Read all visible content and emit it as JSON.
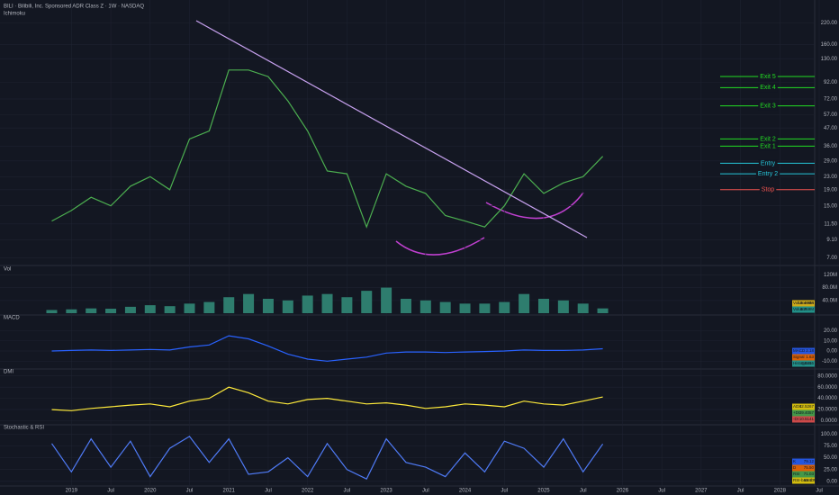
{
  "chart_data": [
    {
      "type": "line",
      "title": "BILI · Bilibili, Inc. Sponsored ADR Class Z · 1W · NASDAQ",
      "subtitle": "Ichimoku",
      "log": true,
      "grid": true,
      "xlim": [
        2018.55,
        2028.9
      ],
      "xticks": [
        2019,
        {
          "value": 2019.5,
          "label": "Jul"
        },
        2020,
        {
          "value": 2020.5,
          "label": "Jul"
        },
        2021,
        {
          "value": 2021.5,
          "label": "Jul"
        },
        2022,
        {
          "value": 2022.5,
          "label": "Jul"
        },
        2023,
        {
          "value": 2023.5,
          "label": "Jul"
        },
        2024,
        {
          "value": 2024.5,
          "label": "Jul"
        },
        2025,
        {
          "value": 2025.5,
          "label": "Jul"
        },
        2026,
        {
          "value": 2026.5,
          "label": "Jul"
        },
        2027,
        {
          "value": 2027.5,
          "label": "Jul"
        },
        2028,
        {
          "value": 2028.5,
          "label": "Jul"
        }
      ],
      "ylim": [
        6.5,
        230
      ],
      "yticks": [
        {
          "value": 7,
          "label": "7.00"
        },
        {
          "value": 9.1,
          "label": "9.10"
        },
        {
          "value": 11.5,
          "label": "11.50"
        },
        {
          "value": 15,
          "label": "15.00"
        },
        {
          "value": 19,
          "label": "19.00"
        },
        {
          "value": 23,
          "label": "23.00"
        },
        {
          "value": 29,
          "label": "29.00"
        },
        {
          "value": 36,
          "label": "36.00"
        },
        {
          "value": 47,
          "label": "47.00"
        },
        {
          "value": 57,
          "label": "57.00"
        },
        {
          "value": 72,
          "label": "72.00"
        },
        {
          "value": 92,
          "label": "92.00"
        },
        {
          "value": 130,
          "label": "130.00"
        },
        {
          "value": 160,
          "label": "160.00"
        },
        {
          "value": 220,
          "label": "220.00"
        }
      ],
      "x": [
        2018.75,
        2019,
        2019.25,
        2019.5,
        2019.75,
        2020,
        2020.25,
        2020.5,
        2020.75,
        2021,
        2021.25,
        2021.5,
        2021.75,
        2022,
        2022.25,
        2022.5,
        2022.75,
        2023,
        2023.25,
        2023.5,
        2023.75,
        2024,
        2024.25,
        2024.5,
        2024.75,
        2025,
        2025.25,
        2025.5,
        2025.75
      ],
      "series": [
        {
          "name": "BILI",
          "color": "#4caf50",
          "values": [
            12,
            14,
            17,
            15,
            20,
            23,
            19,
            40,
            45,
            110,
            110,
            100,
            70,
            45,
            25,
            24,
            11,
            24,
            20,
            18,
            13,
            12,
            11,
            15,
            24,
            18,
            21,
            23,
            31
          ]
        }
      ],
      "levels": [
        {
          "label": "Exit 5",
          "value": 100,
          "color": "#22dd22"
        },
        {
          "label": "Exit 4",
          "value": 85,
          "color": "#22dd22"
        },
        {
          "label": "Exit 3",
          "value": 65,
          "color": "#22dd22"
        },
        {
          "label": "Exit 2",
          "value": 40,
          "color": "#22dd22"
        },
        {
          "label": "Exit 1",
          "value": 36,
          "color": "#22dd22"
        },
        {
          "label": "Entry",
          "value": 28,
          "color": "#26c6da"
        },
        {
          "label": "Entry 2",
          "value": 24,
          "color": "#26c6da"
        },
        {
          "label": "Stop",
          "value": 19,
          "color": "#ef5350"
        }
      ]
    },
    {
      "type": "bar",
      "title": "Vol",
      "grid": true,
      "ylim": [
        0,
        135
      ],
      "yticks": [
        {
          "value": 40,
          "label": "40.0M"
        },
        {
          "value": 80,
          "label": "80.0M"
        },
        {
          "value": 120,
          "label": "120M"
        }
      ],
      "series": [
        {
          "name": "Volume",
          "color": "#2e7d6e",
          "values": [
            10,
            12,
            15,
            14,
            20,
            25,
            22,
            30,
            35,
            50,
            60,
            45,
            40,
            55,
            60,
            50,
            70,
            80,
            45,
            40,
            35,
            30,
            30,
            35,
            60,
            45,
            40,
            30,
            15
          ]
        }
      ],
      "legend": [
        {
          "name": "Volume MA",
          "value": "15.484M",
          "color": "#f0c419"
        },
        {
          "name": "Volume",
          "value": "8.759M",
          "color": "#26a69a"
        }
      ]
    },
    {
      "type": "line",
      "title": "MACD",
      "grid": true,
      "ylim": [
        -16,
        32
      ],
      "yticks": [
        {
          "value": -10,
          "label": "-10.00"
        },
        {
          "value": 0,
          "label": "0.00"
        },
        {
          "value": 10,
          "label": "10.00"
        },
        {
          "value": 20,
          "label": "20.00"
        }
      ],
      "series": [
        {
          "name": "MACD",
          "color": "#2962ff",
          "values": [
            0,
            0.5,
            1,
            0.5,
            1,
            1.5,
            1,
            4,
            6,
            15,
            12,
            5,
            -3,
            -8,
            -10,
            -8,
            -6,
            -2,
            -1,
            -1,
            -1.5,
            -1,
            -0.5,
            0,
            1,
            0.5,
            0.5,
            1,
            2.18
          ]
        }
      ],
      "legend": [
        {
          "name": "MACD",
          "value": "2.18",
          "color": "#2962ff"
        },
        {
          "name": "Signal",
          "value": "1.63",
          "color": "#ff6d00"
        },
        {
          "name": "Histogram",
          "value": "0.5415",
          "color": "#26a69a"
        }
      ]
    },
    {
      "type": "line",
      "title": "DMI",
      "grid": true,
      "ylim": [
        -4,
        86
      ],
      "yticks": [
        {
          "value": 0,
          "label": "0.0000"
        },
        {
          "value": 20,
          "label": "20.0000"
        },
        {
          "value": 40,
          "label": "40.0000"
        },
        {
          "value": 60,
          "label": "60.0000"
        },
        {
          "value": 80,
          "label": "80.0000"
        }
      ],
      "series": [
        {
          "name": "ADX",
          "color": "#ffeb3b",
          "values": [
            20,
            18,
            22,
            25,
            28,
            30,
            25,
            35,
            40,
            60,
            50,
            35,
            30,
            38,
            40,
            35,
            30,
            32,
            28,
            22,
            25,
            30,
            28,
            25,
            35,
            30,
            28,
            35,
            42.5
          ]
        }
      ],
      "legend": [
        {
          "name": "ADX",
          "value": "42.5267",
          "color": "#f5d90a"
        },
        {
          "name": "+DI",
          "value": "39.4057",
          "color": "#4caf50"
        },
        {
          "name": "-DI",
          "value": "10.5141",
          "color": "#ef5350"
        }
      ]
    },
    {
      "type": "line",
      "title": "Stochastic & RSI",
      "grid": true,
      "ylim": [
        -6,
        112
      ],
      "yticks": [
        {
          "value": 0,
          "label": "0.00"
        },
        {
          "value": 25,
          "label": "25.00"
        },
        {
          "value": 50,
          "label": "50.00"
        },
        {
          "value": 75,
          "label": "75.00"
        },
        {
          "value": 100,
          "label": "100.00"
        }
      ],
      "series": [
        {
          "name": "K",
          "color": "#4f7bf7",
          "values": [
            80,
            20,
            90,
            30,
            85,
            10,
            70,
            95,
            40,
            90,
            15,
            20,
            50,
            10,
            80,
            25,
            5,
            90,
            40,
            30,
            10,
            60,
            20,
            85,
            70,
            30,
            90,
            20,
            79
          ]
        }
      ],
      "legend": [
        {
          "name": "K",
          "value": "79.12",
          "color": "#2962ff"
        },
        {
          "name": "D",
          "value": "75.50",
          "color": "#ff6d00"
        },
        {
          "name": "RSI",
          "value": "71.03",
          "color": "#4caf50"
        },
        {
          "name": "RSI-based MA",
          "value": "63.10",
          "color": "#f5d90a"
        }
      ]
    }
  ]
}
